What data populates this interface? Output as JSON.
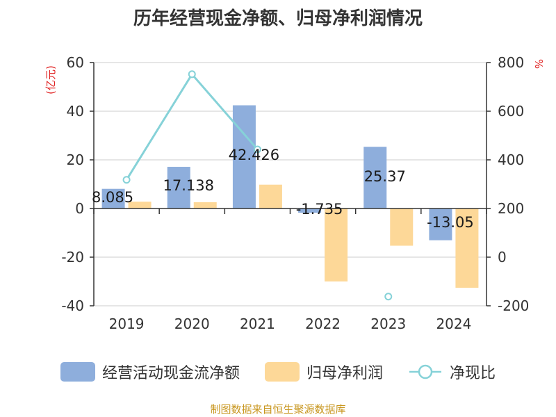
{
  "title": "历年经营现金净额、归母净利润情况",
  "source": "制图数据来自恒生聚源数据库",
  "colors": {
    "cash_flow": "#8eaedc",
    "net_profit": "#fdd898",
    "ratio": "#86d2d8",
    "unit": "#e02020",
    "source": "#c8961e"
  },
  "chart_data": {
    "type": "bar",
    "categories": [
      "2019",
      "2020",
      "2021",
      "2022",
      "2023",
      "2024"
    ],
    "series": [
      {
        "name": "经营活动现金流净额",
        "type": "bar",
        "axis": "left",
        "values": [
          8.085,
          17.138,
          42.426,
          -1.735,
          25.37,
          -13.05
        ],
        "labels": [
          "8.085",
          "17.138",
          "42.426",
          "-1.735",
          "25.37",
          "-13.05"
        ]
      },
      {
        "name": "归母净利润",
        "type": "bar",
        "axis": "left",
        "values": [
          2.8,
          2.6,
          9.8,
          -30.0,
          -15.3,
          -32.6
        ]
      },
      {
        "name": "净现比",
        "type": "line",
        "axis": "right",
        "values": [
          318,
          752,
          443,
          null,
          -162,
          null
        ]
      }
    ],
    "y_left": {
      "unit": "(亿元)",
      "min": -40,
      "max": 60,
      "ticks": [
        -40,
        -20,
        0,
        20,
        40,
        60
      ],
      "tick_labels": [
        "-40",
        "-20",
        "0",
        "20",
        "40",
        "60"
      ]
    },
    "y_right": {
      "unit": "%",
      "min": -200,
      "max": 800,
      "ticks": [
        -200,
        0,
        200,
        400,
        600,
        800
      ],
      "tick_labels": [
        "-200",
        "0",
        "200",
        "400",
        "600",
        "800"
      ]
    },
    "grid": true,
    "legend_position": "bottom"
  }
}
